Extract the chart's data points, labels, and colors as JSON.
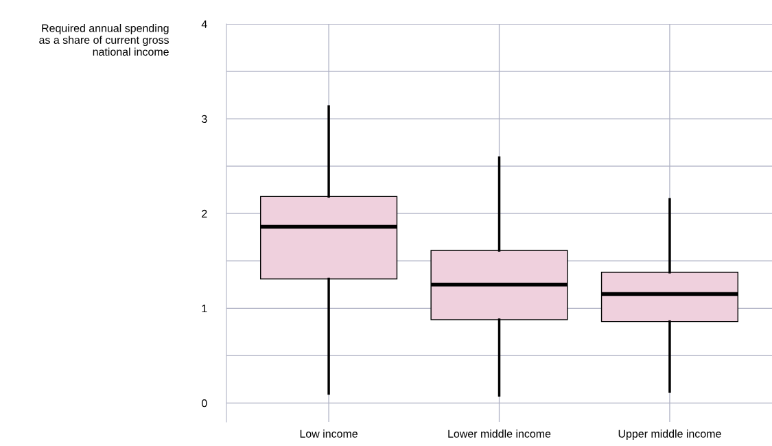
{
  "chart_data": {
    "type": "box",
    "ylabel": "Required annual spending\nas a share of current gross\nnational income",
    "categories": [
      "Low income",
      "Lower middle income",
      "Upper middle income"
    ],
    "boxes": [
      {
        "low": 0.1,
        "q1": 1.31,
        "median": 1.86,
        "q3": 2.18,
        "high": 3.13
      },
      {
        "low": 0.08,
        "q1": 0.88,
        "median": 1.25,
        "q3": 1.61,
        "high": 2.59
      },
      {
        "low": 0.12,
        "q1": 0.86,
        "median": 1.15,
        "q3": 1.38,
        "high": 2.15
      }
    ],
    "color": "#efd0dd",
    "ylim": [
      -0.2,
      4
    ],
    "yticks": [
      0,
      {
        "value": 0.5,
        "label": null
      },
      1,
      {
        "value": 1.5,
        "label": null
      },
      2,
      {
        "value": 2.5,
        "label": null
      },
      3,
      {
        "value": 3.5,
        "label": null
      },
      4
    ],
    "grid": true
  }
}
